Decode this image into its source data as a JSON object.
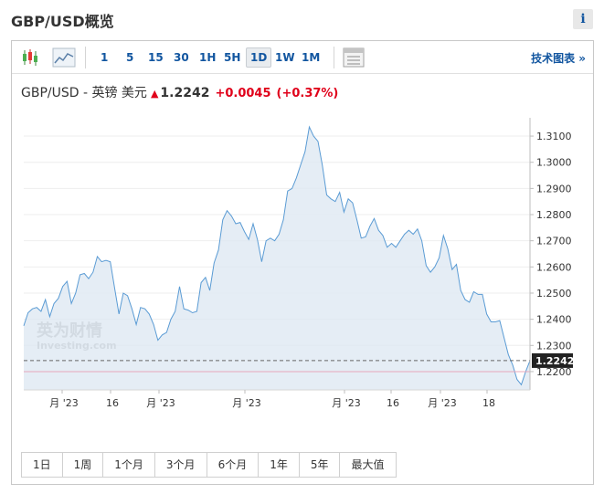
{
  "page": {
    "title": "GBP/USD概览",
    "info_icon_label": "i"
  },
  "toolbar": {
    "intervals": [
      "1",
      "5",
      "15",
      "30",
      "1H",
      "5H",
      "1D",
      "1W",
      "1M"
    ],
    "active_interval": "1D",
    "technical_chart_link": "技术图表 »",
    "icons": [
      "candlestick-icon",
      "area-chart-icon",
      "table-icon"
    ]
  },
  "quote": {
    "name": "GBP/USD - 英镑 美元",
    "price": "1.2242",
    "change": "+0.0045",
    "change_pct": "(+0.37%)",
    "direction": "up",
    "up_color": "#e0001a"
  },
  "watermark": {
    "text_cn": "英为财情",
    "text_en": "Investing.com"
  },
  "chart_data": {
    "type": "area",
    "x_tick_labels": [
      "月 '23",
      "16",
      "月 '23",
      "月 '23",
      "月 '23",
      "16",
      "月 '23",
      "18"
    ],
    "y_ticks": [
      "1.2200",
      "1.2300",
      "1.2400",
      "1.2500",
      "1.2600",
      "1.2700",
      "1.2800",
      "1.2900",
      "1.3000",
      "1.3100"
    ],
    "ylim": [
      1.213,
      1.317
    ],
    "values": [
      1.2375,
      1.2425,
      1.244,
      1.2445,
      1.243,
      1.2475,
      1.241,
      1.246,
      1.248,
      1.2525,
      1.2545,
      1.246,
      1.25,
      1.257,
      1.2575,
      1.2555,
      1.258,
      1.264,
      1.262,
      1.2625,
      1.262,
      1.252,
      1.242,
      1.25,
      1.249,
      1.244,
      1.238,
      1.2445,
      1.244,
      1.242,
      1.238,
      1.232,
      1.234,
      1.235,
      1.24,
      1.243,
      1.2525,
      1.244,
      1.2435,
      1.2425,
      1.243,
      1.254,
      1.256,
      1.251,
      1.2615,
      1.2665,
      1.278,
      1.2815,
      1.2795,
      1.2765,
      1.277,
      1.2735,
      1.2705,
      1.2765,
      1.2705,
      1.262,
      1.27,
      1.271,
      1.27,
      1.2725,
      1.278,
      1.289,
      1.29,
      1.294,
      1.299,
      1.304,
      1.3135,
      1.31,
      1.308,
      1.299,
      1.2875,
      1.286,
      1.285,
      1.2885,
      1.281,
      1.286,
      1.2845,
      1.278,
      1.271,
      1.2715,
      1.2755,
      1.2785,
      1.274,
      1.272,
      1.2675,
      1.269,
      1.2675,
      1.27,
      1.2725,
      1.274,
      1.2725,
      1.2745,
      1.27,
      1.2605,
      1.258,
      1.26,
      1.2635,
      1.272,
      1.267,
      1.259,
      1.261,
      1.251,
      1.2475,
      1.2465,
      1.2505,
      1.2495,
      1.2495,
      1.242,
      1.239,
      1.239,
      1.2395,
      1.233,
      1.2265,
      1.2225,
      1.217,
      1.215,
      1.22,
      1.2242
    ],
    "last_price_label": "1.2242",
    "last_price": 1.2242,
    "reference_line": 1.22,
    "grid": true,
    "line_color": "#5a9bd4",
    "fill_color": "#dfe9f3",
    "reference_line_color": "#e8a8bb"
  },
  "range_buttons": [
    "1日",
    "1周",
    "1个月",
    "3个月",
    "6个月",
    "1年",
    "5年",
    "最大值"
  ]
}
